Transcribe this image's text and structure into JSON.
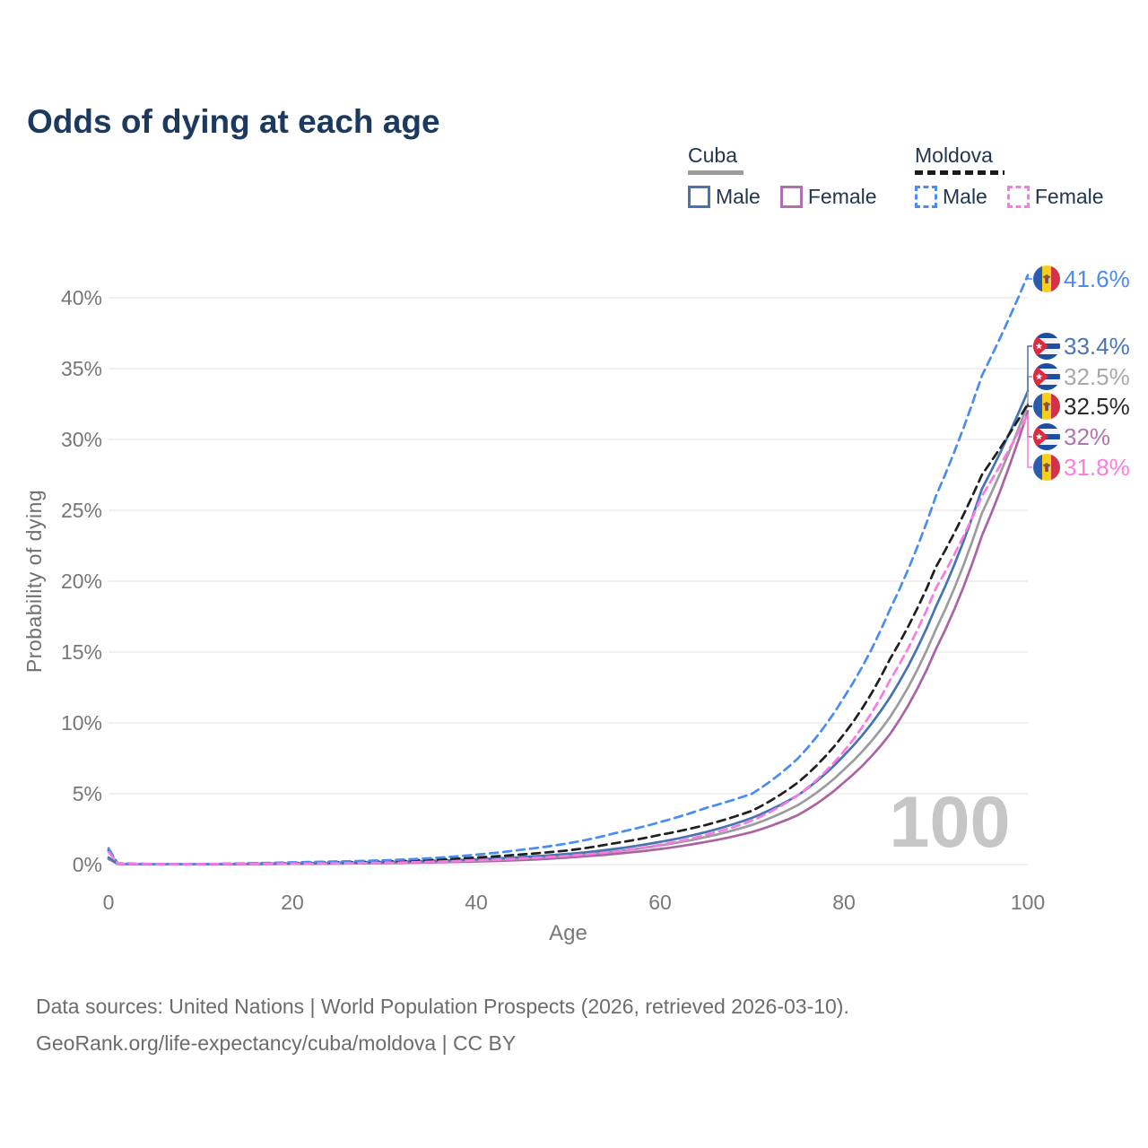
{
  "title": "Odds of dying at each age",
  "legend": {
    "groups": [
      {
        "country": "Cuba",
        "line_style": "solid",
        "underline_color": "#9b9b9b",
        "items": [
          {
            "label": "Male",
            "color": "#4673b2"
          },
          {
            "label": "Female",
            "color": "#b06fae"
          }
        ]
      },
      {
        "country": "Moldova",
        "line_style": "dashed",
        "underline_color": "#1a1a1a",
        "items": [
          {
            "label": "Male",
            "color": "#4a8cf0"
          },
          {
            "label": "Female",
            "color": "#fb7ae2"
          }
        ]
      }
    ]
  },
  "chart_data": {
    "type": "line",
    "title": "Odds of dying at each age",
    "xlabel": "Age",
    "ylabel": "Probability of dying",
    "xlim": [
      0,
      100
    ],
    "ylim": [
      0,
      42
    ],
    "x_ticks": [
      0,
      20,
      40,
      60,
      80,
      100
    ],
    "y_tick_labels": [
      "0%",
      "5%",
      "10%",
      "15%",
      "20%",
      "25%",
      "30%",
      "35%",
      "40%"
    ],
    "grid": "horizontal",
    "legend_position": "top-right",
    "watermark": "100",
    "ages": [
      0,
      1,
      5,
      10,
      15,
      20,
      25,
      30,
      35,
      40,
      45,
      50,
      55,
      60,
      65,
      70,
      75,
      80,
      85,
      90,
      95,
      100
    ],
    "series": [
      {
        "id": "cuba-female",
        "name": "Cuba Female",
        "country": "cuba",
        "sex": "female",
        "color": "#aa64a2",
        "label_color": "#b273ae",
        "dash": false,
        "end_label": "32%",
        "label_slot": 4,
        "values": [
          0.4,
          0.04,
          0.02,
          0.02,
          0.03,
          0.05,
          0.07,
          0.1,
          0.15,
          0.22,
          0.32,
          0.5,
          0.75,
          1.1,
          1.6,
          2.3,
          3.5,
          5.8,
          9.2,
          15.2,
          23.2,
          32.0
        ]
      },
      {
        "id": "cuba-all",
        "name": "Cuba",
        "country": "cuba",
        "sex": "all",
        "color": "#9c9c9c",
        "label_color": "#a8a8a8",
        "dash": false,
        "end_label": "32.5%",
        "label_slot": 2,
        "values": [
          0.45,
          0.045,
          0.022,
          0.022,
          0.04,
          0.07,
          0.1,
          0.14,
          0.2,
          0.29,
          0.42,
          0.62,
          0.92,
          1.35,
          1.95,
          2.8,
          4.2,
          6.7,
          10.4,
          16.6,
          24.8,
          32.5
        ]
      },
      {
        "id": "cuba-male",
        "name": "Cuba Male",
        "country": "cuba",
        "sex": "male",
        "color": "#4673b2",
        "label_color": "#4a76b6",
        "dash": false,
        "end_label": "33.4%",
        "label_slot": 1,
        "values": [
          0.5,
          0.05,
          0.025,
          0.025,
          0.05,
          0.09,
          0.13,
          0.18,
          0.26,
          0.37,
          0.53,
          0.75,
          1.1,
          1.6,
          2.3,
          3.3,
          4.9,
          7.7,
          11.8,
          18.2,
          26.5,
          33.4
        ]
      },
      {
        "id": "moldova-all",
        "name": "Moldova",
        "country": "moldova",
        "sex": "all",
        "color": "#1f1f1f",
        "label_color": "#2a2a2a",
        "dash": true,
        "end_label": "32.5%",
        "label_slot": 3,
        "values": [
          1.0,
          0.07,
          0.035,
          0.035,
          0.07,
          0.11,
          0.16,
          0.22,
          0.33,
          0.5,
          0.72,
          1.0,
          1.5,
          2.1,
          2.8,
          3.8,
          5.8,
          9.2,
          14.5,
          21.0,
          27.5,
          32.5
        ]
      },
      {
        "id": "moldova-male",
        "name": "Moldova Male",
        "country": "moldova",
        "sex": "male",
        "color": "#4a8cf0",
        "label_color": "#4a8cf0",
        "dash": true,
        "end_label": "41.6%",
        "label_slot": 0,
        "values": [
          1.15,
          0.08,
          0.04,
          0.04,
          0.09,
          0.16,
          0.22,
          0.3,
          0.45,
          0.7,
          1.05,
          1.5,
          2.2,
          3.0,
          4.0,
          5.0,
          7.5,
          11.8,
          18.0,
          26.0,
          34.5,
          41.6
        ]
      },
      {
        "id": "moldova-female",
        "name": "Moldova Female",
        "country": "moldova",
        "sex": "female",
        "color": "#fb7ae2",
        "label_color": "#ff7ce0",
        "dash": true,
        "end_label": "31.8%",
        "label_slot": 5,
        "values": [
          0.9,
          0.06,
          0.03,
          0.03,
          0.05,
          0.07,
          0.09,
          0.13,
          0.2,
          0.3,
          0.43,
          0.62,
          0.92,
          1.4,
          2.1,
          3.1,
          4.9,
          8.0,
          13.0,
          19.5,
          26.0,
          31.8
        ]
      }
    ]
  },
  "footer": {
    "line1": "Data sources: United Nations | World Population Prospects (2026, retrieved 2026-03-10).",
    "line2": "GeoRank.org/life-expectancy/cuba/moldova | CC BY"
  }
}
